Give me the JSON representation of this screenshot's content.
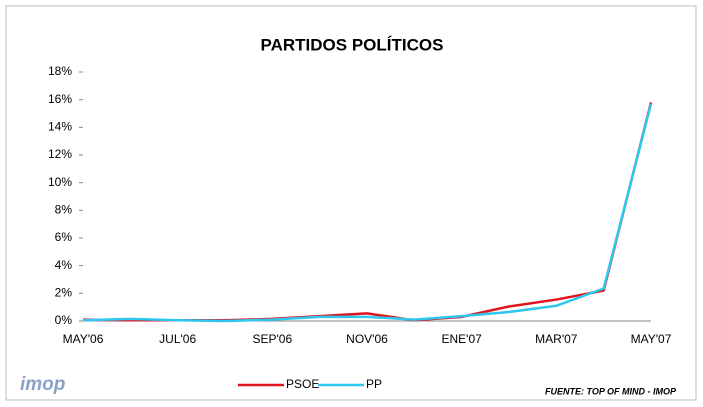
{
  "chart_data": {
    "type": "line",
    "title": "PARTIDOS POLÍTICOS",
    "categories": [
      "MAY'06",
      null,
      "JUL'06",
      null,
      "SEP'06",
      null,
      "NOV'06",
      null,
      "ENE'07",
      null,
      "MAR'07",
      null,
      "MAY'07"
    ],
    "series": [
      {
        "name": "PSOE",
        "color": "#e0141e",
        "values": [
          0.1,
          0.05,
          0.05,
          0.05,
          0.15,
          0.35,
          0.55,
          0.05,
          0.3,
          1.05,
          1.55,
          2.2,
          15.8
        ]
      },
      {
        "name": "PP",
        "color": "#2ec8ee",
        "values": [
          0.05,
          0.15,
          0.05,
          0.0,
          0.1,
          0.3,
          0.3,
          0.1,
          0.35,
          0.65,
          1.1,
          2.35,
          15.7
        ]
      }
    ],
    "ylim": [
      0,
      18
    ],
    "yticks": [
      {
        "value": 0,
        "label": "0%"
      },
      {
        "value": 2,
        "label": "2%"
      },
      {
        "value": 4,
        "label": "4%"
      },
      {
        "value": 6,
        "label": "6%"
      },
      {
        "value": 8,
        "label": "8%"
      },
      {
        "value": 10,
        "label": "10%"
      },
      {
        "value": 12,
        "label": "12%"
      },
      {
        "value": 14,
        "label": "14%"
      },
      {
        "value": 16,
        "label": "16%"
      },
      {
        "value": 18,
        "label": "18%"
      }
    ],
    "legend": "bottom",
    "logo": "imop",
    "source": "FUENTE: TOP OF MIND - IMOP"
  }
}
